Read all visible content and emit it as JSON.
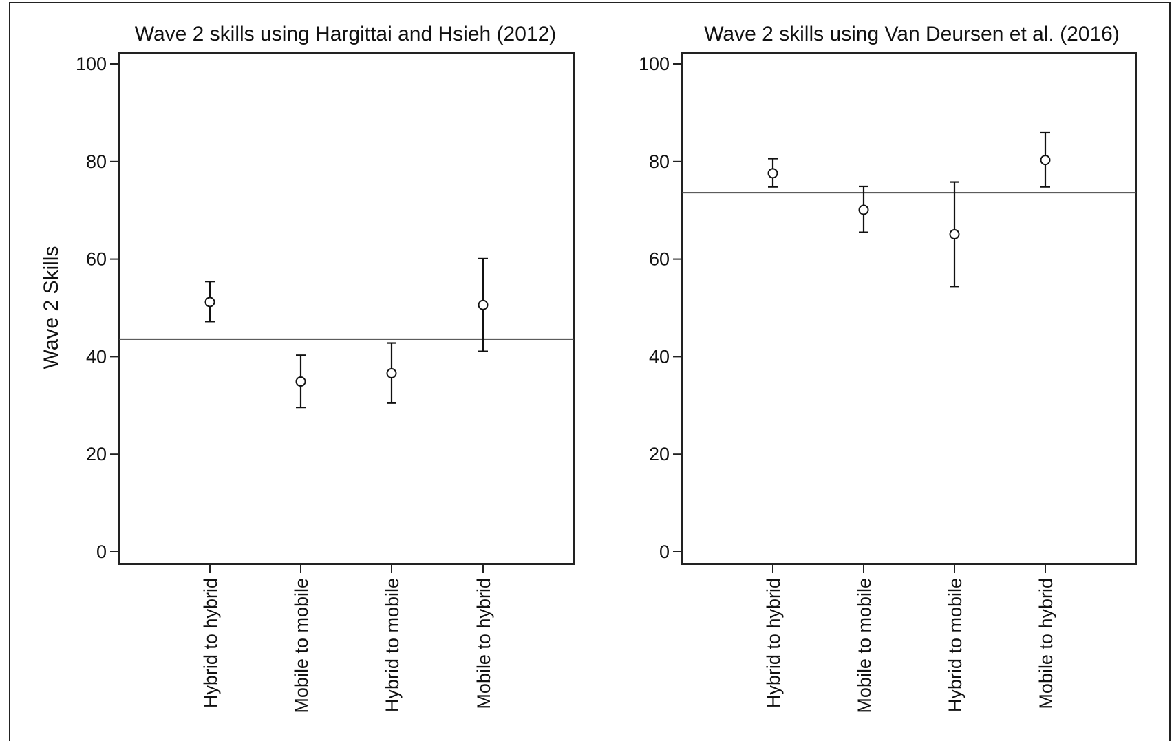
{
  "chart_data": [
    {
      "type": "scatter",
      "title": "Wave 2 skills using Hargittai and Hsieh (2012)",
      "ylabel": "Wave 2 Skills",
      "xlabel": "",
      "ylim": [
        0,
        100
      ],
      "yticks": [
        0,
        20,
        40,
        60,
        80,
        100
      ],
      "categories": [
        "Hybrid to hybrid",
        "Mobile to mobile",
        "Hybrid to mobile",
        "Mobile to hybrid"
      ],
      "values": [
        51.2,
        34.9,
        36.6,
        50.6
      ],
      "ci_lower": [
        47.2,
        29.6,
        30.5,
        41.1
      ],
      "ci_upper": [
        55.4,
        40.3,
        42.8,
        60.1
      ],
      "reference_line": 43.6,
      "grid": false,
      "marker": "hollow-circle"
    },
    {
      "type": "scatter",
      "title": "Wave 2 skills using Van Deursen et al. (2016)",
      "ylabel": "",
      "xlabel": "",
      "ylim": [
        0,
        100
      ],
      "yticks": [
        0,
        20,
        40,
        60,
        80,
        100
      ],
      "categories": [
        "Hybrid to hybrid",
        "Mobile to mobile",
        "Hybrid to mobile",
        "Mobile to hybrid"
      ],
      "values": [
        77.6,
        70.1,
        65.1,
        80.3
      ],
      "ci_lower": [
        74.8,
        65.5,
        54.4,
        74.8
      ],
      "ci_upper": [
        80.6,
        74.9,
        75.8,
        85.9
      ],
      "reference_line": 73.6,
      "grid": false,
      "marker": "hollow-circle"
    }
  ]
}
